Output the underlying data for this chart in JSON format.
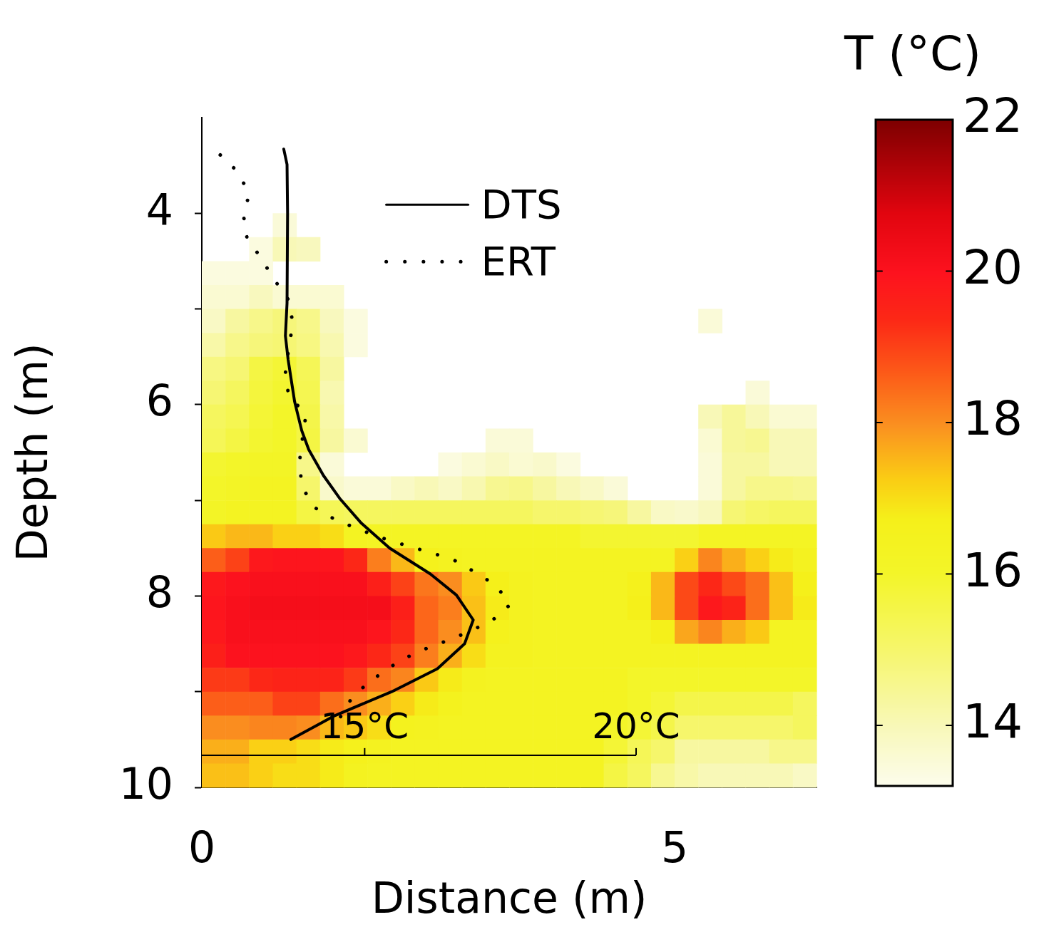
{
  "chart_data": {
    "type": "heatmap",
    "xlabel": "Distance (m)",
    "ylabel": "Depth (m)",
    "clabel": "T (°C)",
    "x": [
      0.125,
      0.375,
      0.625,
      0.875,
      1.125,
      1.375,
      1.625,
      1.875,
      2.125,
      2.375,
      2.625,
      2.875,
      3.125,
      3.375,
      3.625,
      3.875,
      4.125,
      4.375,
      4.625,
      4.875,
      5.125,
      5.375,
      5.625,
      5.875,
      6.125,
      6.375
    ],
    "y": [
      4.125,
      4.375,
      4.625,
      4.875,
      5.125,
      5.375,
      5.625,
      5.875,
      6.125,
      6.375,
      6.625,
      6.875,
      7.125,
      7.375,
      7.625,
      7.875,
      8.125,
      8.375,
      8.625,
      8.875,
      9.125,
      9.375,
      9.625,
      9.875
    ],
    "xlim": [
      0,
      6.5
    ],
    "xticks": [
      0,
      5
    ],
    "ylim": [
      10,
      3
    ],
    "yticks": [
      4,
      {
        "value": 5,
        "label": null
      },
      6,
      {
        "value": 7,
        "label": null
      },
      8,
      {
        "value": 9,
        "label": null
      },
      10
    ],
    "x2lim": [
      12,
      20
    ],
    "x2ticks": [
      {
        "value": 15,
        "label": "15°C"
      },
      {
        "value": 20,
        "label": "20°C"
      }
    ],
    "clim": [
      13.2,
      22
    ],
    "cticks": [
      14,
      16,
      18,
      20,
      22
    ],
    "legend": "top",
    "cells": [
      [
        null,
        null,
        null,
        13.5,
        null,
        null,
        null,
        null,
        null,
        null,
        null,
        null,
        null,
        null,
        null,
        null,
        null,
        null,
        null,
        null,
        null,
        null,
        null,
        null,
        null,
        null
      ],
      [
        null,
        null,
        13.4,
        14.0,
        13.9,
        null,
        null,
        null,
        null,
        null,
        null,
        null,
        null,
        null,
        null,
        null,
        null,
        null,
        null,
        null,
        null,
        null,
        null,
        null,
        null,
        null
      ],
      [
        13.4,
        13.4,
        13.4,
        null,
        null,
        null,
        null,
        null,
        null,
        null,
        null,
        null,
        null,
        null,
        null,
        null,
        null,
        null,
        null,
        null,
        null,
        null,
        null,
        null,
        null,
        null
      ],
      [
        13.6,
        13.6,
        13.9,
        13.6,
        13.6,
        13.6,
        null,
        null,
        null,
        null,
        null,
        null,
        null,
        null,
        null,
        null,
        null,
        null,
        null,
        null,
        null,
        null,
        null,
        null,
        null,
        null
      ],
      [
        13.8,
        14.3,
        14.6,
        14.8,
        14.6,
        13.9,
        13.4,
        null,
        null,
        null,
        null,
        null,
        null,
        null,
        null,
        null,
        null,
        null,
        null,
        null,
        null,
        13.5,
        null,
        null,
        null,
        null
      ],
      [
        14.2,
        14.6,
        14.8,
        14.9,
        14.7,
        14.1,
        13.4,
        null,
        null,
        null,
        null,
        null,
        null,
        null,
        null,
        null,
        null,
        null,
        null,
        null,
        null,
        null,
        null,
        null,
        null,
        null
      ],
      [
        14.7,
        14.9,
        15.6,
        15.8,
        15.3,
        14.3,
        null,
        null,
        null,
        null,
        null,
        null,
        null,
        null,
        null,
        null,
        null,
        null,
        null,
        null,
        null,
        null,
        null,
        null,
        null,
        null
      ],
      [
        14.9,
        15.2,
        15.7,
        15.9,
        15.4,
        14.1,
        null,
        null,
        null,
        null,
        null,
        null,
        null,
        null,
        null,
        null,
        null,
        null,
        null,
        null,
        null,
        null,
        null,
        13.5,
        null,
        null
      ],
      [
        15.2,
        15.4,
        15.8,
        16.0,
        15.5,
        14.2,
        null,
        null,
        null,
        null,
        null,
        null,
        null,
        null,
        null,
        null,
        null,
        null,
        null,
        null,
        null,
        14.0,
        14.4,
        14.0,
        13.6,
        13.6
      ],
      [
        15.3,
        15.6,
        15.9,
        16.0,
        15.6,
        14.3,
        13.6,
        null,
        null,
        null,
        null,
        null,
        13.5,
        13.5,
        null,
        null,
        null,
        null,
        null,
        null,
        null,
        13.6,
        14.4,
        14.5,
        14.0,
        14.0
      ],
      [
        15.9,
        16.0,
        16.1,
        16.1,
        14.6,
        13.5,
        null,
        null,
        null,
        null,
        13.4,
        13.6,
        13.8,
        13.6,
        13.7,
        13.4,
        null,
        null,
        null,
        null,
        null,
        13.5,
        14.3,
        14.3,
        14.0,
        14.0
      ],
      [
        16.0,
        16.1,
        16.3,
        16.3,
        15.0,
        13.7,
        13.5,
        13.5,
        13.8,
        14.0,
        13.8,
        14.1,
        14.5,
        14.6,
        14.3,
        14.0,
        13.8,
        13.5,
        null,
        null,
        null,
        13.5,
        14.3,
        14.6,
        14.6,
        14.5
      ],
      [
        16.1,
        16.3,
        16.3,
        16.3,
        15.6,
        15.3,
        15.2,
        15.2,
        15.2,
        15.2,
        15.2,
        15.2,
        15.2,
        15.2,
        15.0,
        15.0,
        14.9,
        14.8,
        14.3,
        13.8,
        13.7,
        13.9,
        14.9,
        15.1,
        15.2,
        15.2
      ],
      [
        17.3,
        17.5,
        17.5,
        17.2,
        17.2,
        17.0,
        16.3,
        16.2,
        16.2,
        16.2,
        16.2,
        16.2,
        16.2,
        16.2,
        16.2,
        16.2,
        15.9,
        15.9,
        15.9,
        15.9,
        15.9,
        16.2,
        16.2,
        16.2,
        16.2,
        16.2
      ],
      [
        18.6,
        19.0,
        19.8,
        19.9,
        19.9,
        19.9,
        19.4,
        18.2,
        17.5,
        16.6,
        16.4,
        16.3,
        16.3,
        16.3,
        16.3,
        16.3,
        16.3,
        16.3,
        16.3,
        16.3,
        17.2,
        18.1,
        17.6,
        17.2,
        16.8,
        16.4
      ],
      [
        19.8,
        20.0,
        20.1,
        20.1,
        20.1,
        20.1,
        20.1,
        19.6,
        19.0,
        18.3,
        18.0,
        17.3,
        16.7,
        16.4,
        16.3,
        16.3,
        16.3,
        16.3,
        16.6,
        17.5,
        18.9,
        19.4,
        18.9,
        18.4,
        17.4,
        16.7
      ],
      [
        19.9,
        20.1,
        20.2,
        20.2,
        20.2,
        20.2,
        20.2,
        20.2,
        19.6,
        18.5,
        18.2,
        17.4,
        16.8,
        16.4,
        16.3,
        16.3,
        16.3,
        16.3,
        16.7,
        17.5,
        18.9,
        19.8,
        19.5,
        18.4,
        17.4,
        16.8
      ],
      [
        19.8,
        20.1,
        20.1,
        20.1,
        20.1,
        20.1,
        20.1,
        19.9,
        19.4,
        18.5,
        18.0,
        17.4,
        16.6,
        16.4,
        16.3,
        16.3,
        16.3,
        16.3,
        16.3,
        16.7,
        17.7,
        18.1,
        17.6,
        17.3,
        16.3,
        16.3
      ],
      [
        19.6,
        20.0,
        20.0,
        20.0,
        20.0,
        20.0,
        19.8,
        19.4,
        19.0,
        18.2,
        17.6,
        17.0,
        16.4,
        16.4,
        16.3,
        16.3,
        16.3,
        16.3,
        16.3,
        16.3,
        16.3,
        16.3,
        16.3,
        16.3,
        16.3,
        16.3
      ],
      [
        19.1,
        19.1,
        19.4,
        19.5,
        19.5,
        19.5,
        19.1,
        18.4,
        18.1,
        17.3,
        16.8,
        16.4,
        16.3,
        16.3,
        16.3,
        16.3,
        16.3,
        16.3,
        16.0,
        16.0,
        16.0,
        16.0,
        16.0,
        16.0,
        16.0,
        16.0
      ],
      [
        18.6,
        18.6,
        18.6,
        19.0,
        19.0,
        18.4,
        18.0,
        17.6,
        17.2,
        16.8,
        16.5,
        16.3,
        16.3,
        16.3,
        16.3,
        16.3,
        16.3,
        16.3,
        16.0,
        15.8,
        15.5,
        15.5,
        15.5,
        15.5,
        15.5,
        15.2
      ],
      [
        18.0,
        18.0,
        18.1,
        18.1,
        18.0,
        17.5,
        17.3,
        17.0,
        16.5,
        16.4,
        16.3,
        16.3,
        16.3,
        16.3,
        16.3,
        16.3,
        16.3,
        16.0,
        15.8,
        15.5,
        15.0,
        15.0,
        15.0,
        15.0,
        15.0,
        15.2
      ],
      [
        17.6,
        17.6,
        17.2,
        17.2,
        17.0,
        16.8,
        16.6,
        16.4,
        16.3,
        16.3,
        16.3,
        16.3,
        16.3,
        16.3,
        16.3,
        16.3,
        16.3,
        15.8,
        15.3,
        15.0,
        14.3,
        14.3,
        14.3,
        14.3,
        14.6,
        14.6
      ],
      [
        17.4,
        17.4,
        17.2,
        17.0,
        17.0,
        16.8,
        16.4,
        16.3,
        16.3,
        16.3,
        16.3,
        16.3,
        16.3,
        16.3,
        16.3,
        16.3,
        16.3,
        15.6,
        15.2,
        14.5,
        14.2,
        14.0,
        14.0,
        14.0,
        14.0,
        13.8
      ]
    ],
    "series": [
      {
        "name": "DTS",
        "type": "line",
        "axis": "x2",
        "color": "#000000",
        "line_style": "solid",
        "x": [
          13.51,
          13.57,
          13.58,
          13.57,
          13.54,
          13.59,
          13.71,
          13.84,
          13.97,
          14.24,
          14.54,
          14.94,
          15.46,
          16.21,
          16.69,
          17.0,
          16.84,
          16.34,
          15.5,
          14.45,
          13.64
        ],
        "values": [
          3.33,
          3.49,
          4.0,
          4.94,
          5.28,
          5.53,
          5.97,
          6.27,
          6.47,
          6.74,
          6.98,
          7.24,
          7.5,
          7.77,
          7.99,
          8.25,
          8.5,
          8.76,
          9.0,
          9.25,
          9.5
        ]
      },
      {
        "name": "ERT",
        "type": "line",
        "axis": "x2",
        "color": "#000000",
        "line_style": "dotted",
        "x": [
          12.34,
          12.67,
          12.87,
          12.77,
          12.83,
          13.09,
          13.33,
          13.59,
          13.68,
          13.6,
          13.54,
          13.6,
          13.92,
          13.86,
          13.8,
          13.84,
          14.06,
          14.45,
          14.88,
          15.3,
          15.75,
          16.18,
          16.63,
          17.03,
          17.42,
          17.68,
          17.38,
          16.98,
          16.55,
          16.13,
          15.7,
          15.32,
          14.96,
          14.64,
          14.46
        ],
        "values": [
          3.39,
          3.57,
          3.8,
          4.03,
          4.25,
          4.47,
          4.69,
          4.9,
          5.15,
          5.41,
          5.67,
          5.91,
          6.1,
          6.33,
          6.59,
          6.85,
          7.07,
          7.2,
          7.3,
          7.39,
          7.47,
          7.54,
          7.62,
          7.75,
          7.89,
          8.09,
          8.24,
          8.36,
          8.46,
          8.55,
          8.66,
          8.8,
          8.96,
          9.15,
          9.39
        ]
      }
    ]
  }
}
